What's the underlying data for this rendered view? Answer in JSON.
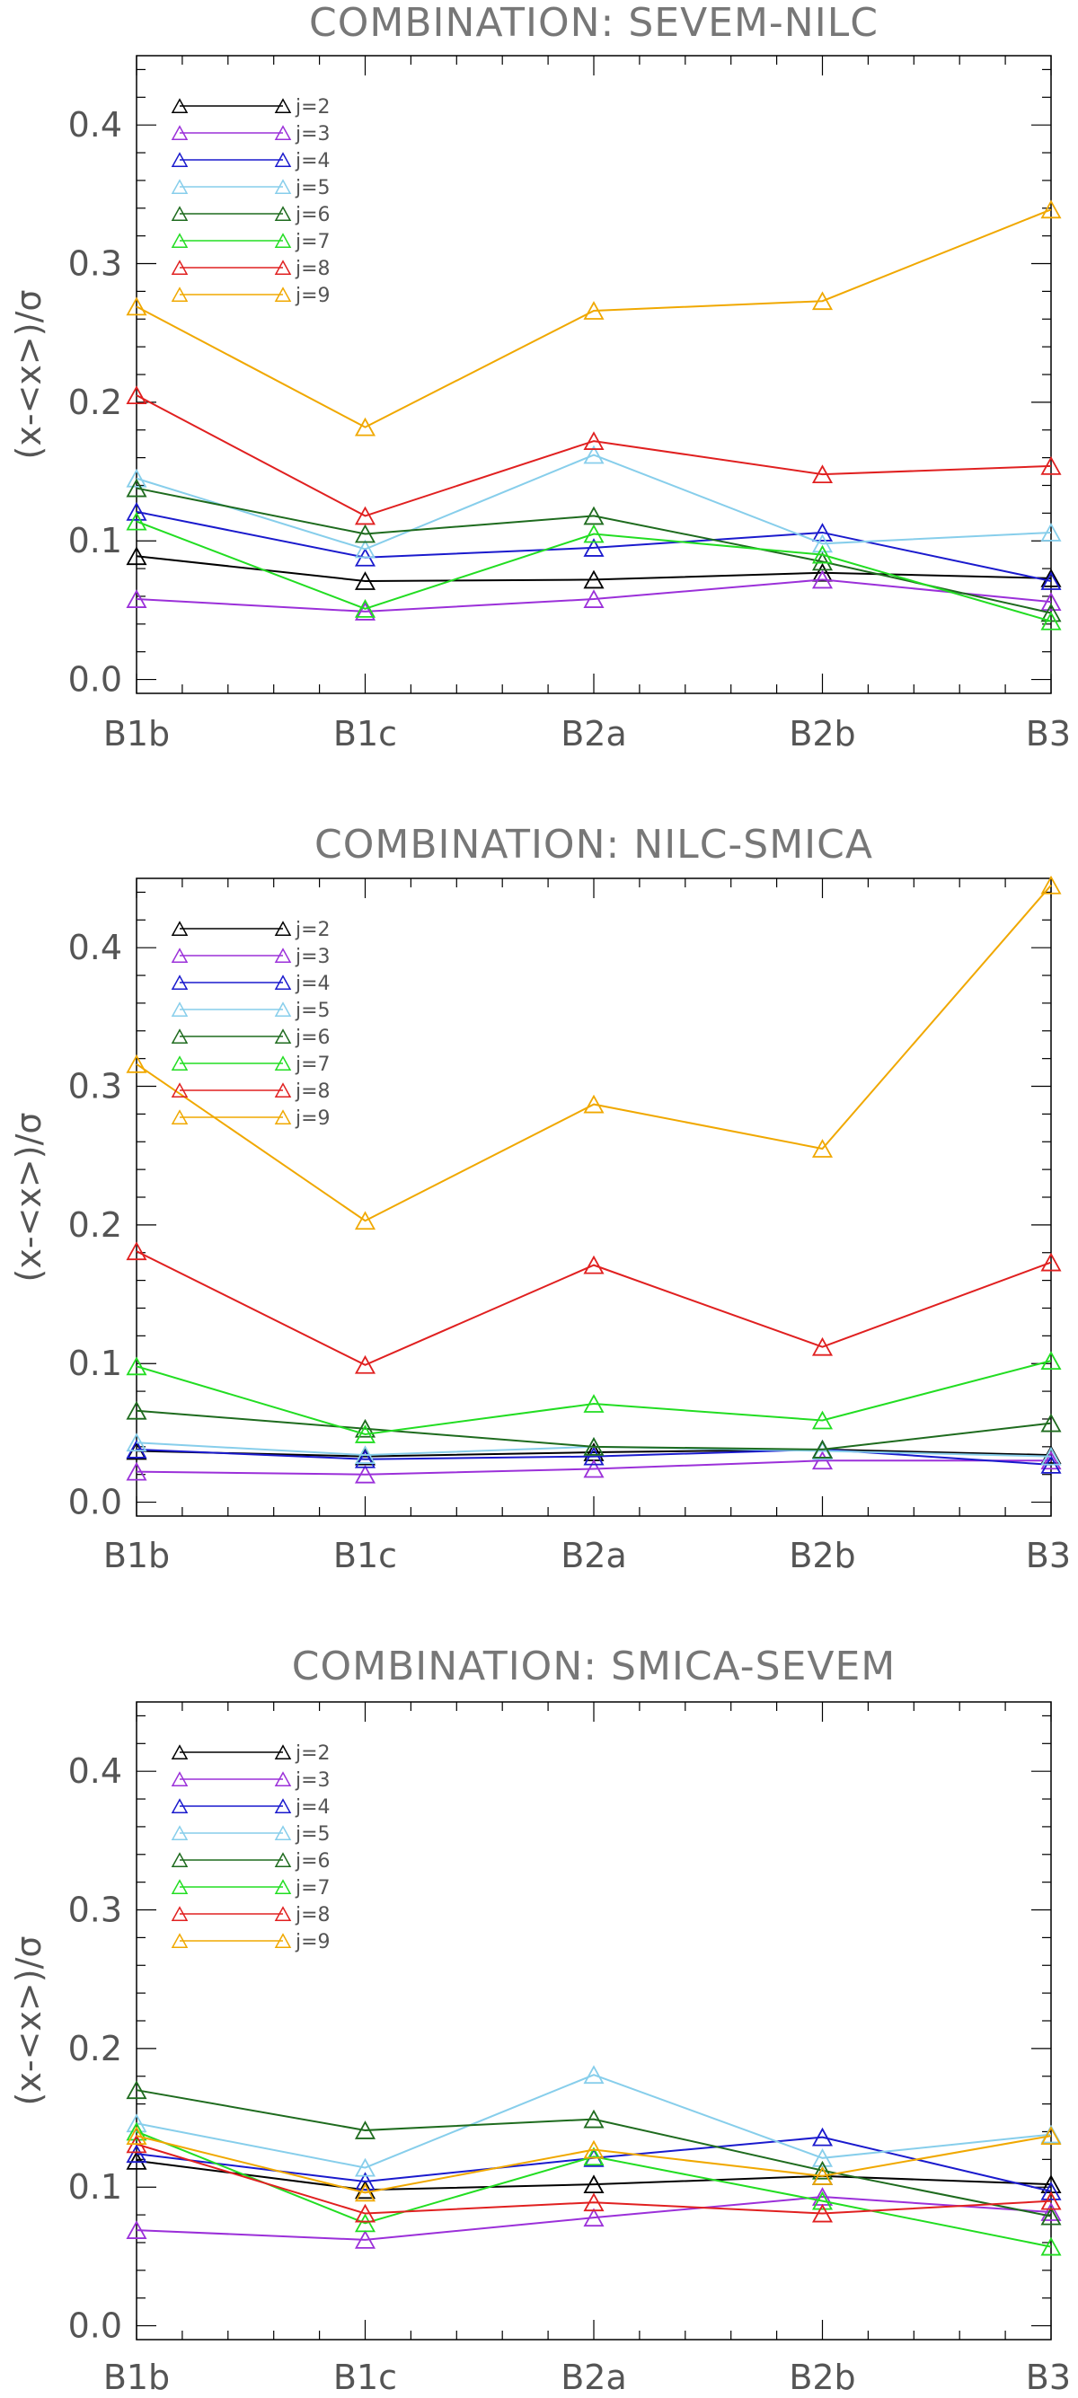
{
  "chart_data": [
    {
      "type": "line",
      "title": "COMBINATION: SEVEM-NILC",
      "xlabel": "",
      "ylabel": "(x-<x>)/σ",
      "categories": [
        "B1b",
        "B1c",
        "B2a",
        "B2b",
        "B3"
      ],
      "ylim": [
        -0.01,
        0.45
      ],
      "yticks": [
        "0.0",
        "0.1",
        "0.2",
        "0.3",
        "0.4"
      ],
      "legend_position": "top-left",
      "series": [
        {
          "name": "j=2",
          "color": "#000000",
          "values": [
            0.089,
            0.071,
            0.072,
            0.077,
            0.073
          ]
        },
        {
          "name": "j=3",
          "color": "#9b30d9",
          "values": [
            0.058,
            0.049,
            0.058,
            0.072,
            0.056
          ]
        },
        {
          "name": "j=4",
          "color": "#1a1acd",
          "values": [
            0.121,
            0.088,
            0.095,
            0.106,
            0.071
          ]
        },
        {
          "name": "j=5",
          "color": "#87ceeb",
          "values": [
            0.145,
            0.094,
            0.162,
            0.098,
            0.106
          ]
        },
        {
          "name": "j=6",
          "color": "#1e6b1e",
          "values": [
            0.138,
            0.105,
            0.118,
            0.085,
            0.048
          ]
        },
        {
          "name": "j=7",
          "color": "#22dd22",
          "values": [
            0.114,
            0.051,
            0.105,
            0.09,
            0.042
          ]
        },
        {
          "name": "j=8",
          "color": "#e02020",
          "values": [
            0.205,
            0.118,
            0.172,
            0.148,
            0.154
          ]
        },
        {
          "name": "j=9",
          "color": "#f0a800",
          "values": [
            0.269,
            0.182,
            0.266,
            0.273,
            0.339
          ]
        }
      ]
    },
    {
      "type": "line",
      "title": "COMBINATION: NILC-SMICA",
      "xlabel": "",
      "ylabel": "(x-<x>)/σ",
      "categories": [
        "B1b",
        "B1c",
        "B2a",
        "B2b",
        "B3"
      ],
      "ylim": [
        -0.01,
        0.45
      ],
      "yticks": [
        "0.0",
        "0.1",
        "0.2",
        "0.3",
        "0.4"
      ],
      "legend_position": "top-left",
      "series": [
        {
          "name": "j=2",
          "color": "#000000",
          "values": [
            0.037,
            0.033,
            0.036,
            0.038,
            0.034
          ]
        },
        {
          "name": "j=3",
          "color": "#9b30d9",
          "values": [
            0.022,
            0.02,
            0.024,
            0.03,
            0.03
          ]
        },
        {
          "name": "j=4",
          "color": "#1a1acd",
          "values": [
            0.038,
            0.031,
            0.033,
            0.038,
            0.027
          ]
        },
        {
          "name": "j=5",
          "color": "#87ceeb",
          "values": [
            0.043,
            0.034,
            0.04,
            0.037,
            0.033
          ]
        },
        {
          "name": "j=6",
          "color": "#1e6b1e",
          "values": [
            0.066,
            0.053,
            0.04,
            0.038,
            0.057
          ]
        },
        {
          "name": "j=7",
          "color": "#22dd22",
          "values": [
            0.098,
            0.049,
            0.071,
            0.059,
            0.102
          ]
        },
        {
          "name": "j=8",
          "color": "#e02020",
          "values": [
            0.181,
            0.099,
            0.171,
            0.112,
            0.173
          ]
        },
        {
          "name": "j=9",
          "color": "#f0a800",
          "values": [
            0.316,
            0.203,
            0.287,
            0.255,
            0.445
          ]
        }
      ]
    },
    {
      "type": "line",
      "title": "COMBINATION: SMICA-SEVEM",
      "xlabel": "",
      "ylabel": "(x-<x>)/σ",
      "categories": [
        "B1b",
        "B1c",
        "B2a",
        "B2b",
        "B3"
      ],
      "ylim": [
        -0.01,
        0.45
      ],
      "yticks": [
        "0.0",
        "0.1",
        "0.2",
        "0.3",
        "0.4"
      ],
      "legend_position": "top-left",
      "series": [
        {
          "name": "j=2",
          "color": "#000000",
          "values": [
            0.119,
            0.098,
            0.102,
            0.108,
            0.102
          ]
        },
        {
          "name": "j=3",
          "color": "#9b30d9",
          "values": [
            0.069,
            0.062,
            0.078,
            0.093,
            0.082
          ]
        },
        {
          "name": "j=4",
          "color": "#1a1acd",
          "values": [
            0.124,
            0.104,
            0.121,
            0.136,
            0.097
          ]
        },
        {
          "name": "j=5",
          "color": "#87ceeb",
          "values": [
            0.146,
            0.114,
            0.181,
            0.121,
            0.138
          ]
        },
        {
          "name": "j=6",
          "color": "#1e6b1e",
          "values": [
            0.17,
            0.141,
            0.149,
            0.112,
            0.079
          ]
        },
        {
          "name": "j=7",
          "color": "#22dd22",
          "values": [
            0.14,
            0.074,
            0.122,
            0.09,
            0.057
          ]
        },
        {
          "name": "j=8",
          "color": "#e02020",
          "values": [
            0.131,
            0.081,
            0.089,
            0.081,
            0.09
          ]
        },
        {
          "name": "j=9",
          "color": "#f0a800",
          "values": [
            0.137,
            0.096,
            0.127,
            0.108,
            0.137
          ]
        }
      ]
    }
  ]
}
